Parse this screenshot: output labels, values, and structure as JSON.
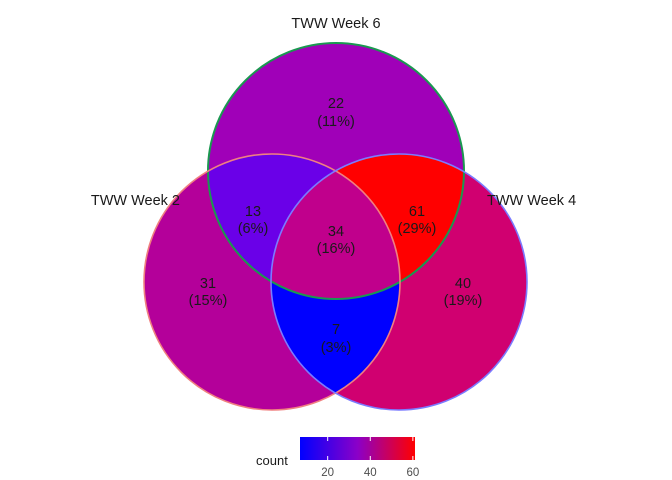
{
  "sets": [
    {
      "label": "TWW Week 6",
      "border_color": "#1a9850"
    },
    {
      "label": "TWW Week 2",
      "border_color": "#f08080"
    },
    {
      "label": "TWW Week 4",
      "border_color": "#7b7bff"
    }
  ],
  "regions": [
    {
      "id": "week6_only",
      "count": "22",
      "percent": "(11%)",
      "value": 22,
      "fill": "#a000b8"
    },
    {
      "id": "week2_only",
      "count": "31",
      "percent": "(15%)",
      "value": 31,
      "fill": "#b4009a"
    },
    {
      "id": "week4_only",
      "count": "40",
      "percent": "(19%)",
      "value": 40,
      "fill": "#d00070"
    },
    {
      "id": "week6_week2",
      "count": "13",
      "percent": "(6%)",
      "value": 13,
      "fill": "#6a00e8"
    },
    {
      "id": "week6_week4",
      "count": "61",
      "percent": "(29%)",
      "value": 61,
      "fill": "#ff0000"
    },
    {
      "id": "week2_week4",
      "count": "7",
      "percent": "(3%)",
      "value": 7,
      "fill": "#0000ff"
    },
    {
      "id": "all_three",
      "count": "34",
      "percent": "(16%)",
      "value": 34,
      "fill": "#c0008c"
    }
  ],
  "legend": {
    "title": "count",
    "ticks": [
      "20",
      "40",
      "60"
    ],
    "tick_values": [
      20,
      40,
      60
    ],
    "min": 7,
    "max": 61,
    "gradient": [
      "#0000ff",
      "#8b00c8",
      "#ff0000"
    ]
  }
}
